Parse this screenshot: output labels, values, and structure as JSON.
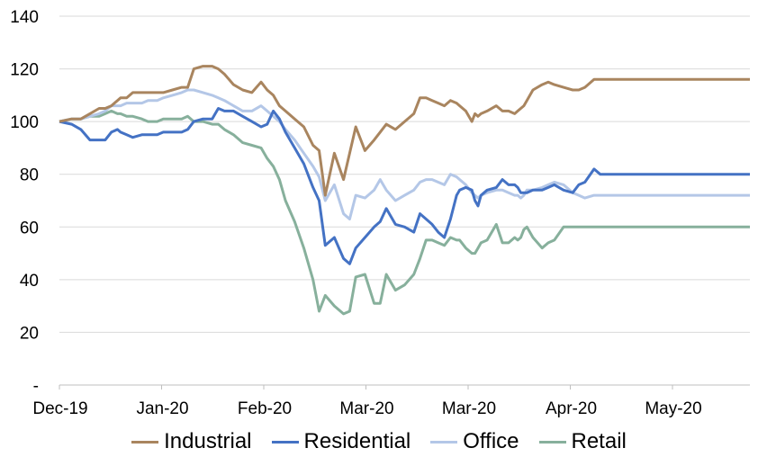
{
  "chart_data": {
    "type": "line",
    "title": "",
    "xlabel": "",
    "ylabel": "",
    "ylim": [
      0,
      140
    ],
    "y_ticks": [
      0,
      20,
      40,
      60,
      80,
      100,
      120,
      140
    ],
    "y_tick_labels": [
      "-",
      "20",
      "40",
      "60",
      "80",
      "100",
      "120",
      "140"
    ],
    "x_tick_labels": [
      "Dec-19",
      "Jan-20",
      "Feb-20",
      "Mar-20",
      "Mar-20",
      "Apr-20",
      "May-20"
    ],
    "grid": "horizontal",
    "legend_position": "bottom",
    "x": [
      0,
      4,
      7,
      10,
      13,
      15,
      17,
      19,
      20,
      22,
      24,
      27,
      29,
      32,
      34,
      37,
      40,
      42,
      44,
      47,
      50,
      52,
      54,
      57,
      60,
      63,
      66,
      68,
      70,
      72,
      74,
      77,
      80,
      83,
      85,
      87,
      90,
      93,
      95,
      97,
      100,
      103,
      105,
      107,
      110,
      113,
      116,
      118,
      120,
      122,
      124,
      126,
      128,
      130,
      131,
      133,
      135,
      136,
      137,
      138,
      140,
      143,
      145,
      147,
      149,
      150,
      151,
      152,
      153,
      155,
      158,
      160,
      162,
      165,
      168,
      170,
      172,
      175,
      177,
      180,
      182,
      185,
      188,
      190,
      193,
      195,
      197,
      200,
      203,
      205,
      207,
      210,
      212,
      215,
      217,
      220,
      222,
      224,
      226
    ],
    "series": [
      {
        "name": "Industrial",
        "color": "#a9855f",
        "values": [
          100,
          101,
          101,
          103,
          105,
          105,
          106,
          108,
          109,
          109,
          111,
          111,
          111,
          111,
          111,
          112,
          113,
          113,
          120,
          121,
          121,
          120,
          118,
          114,
          112,
          111,
          115,
          112,
          110,
          106,
          104,
          101,
          98,
          91,
          89,
          72,
          88,
          78,
          88,
          98,
          89,
          93,
          96,
          99,
          97,
          100,
          103,
          109,
          109,
          108,
          107,
          106,
          108,
          107,
          106,
          104,
          100,
          103,
          102,
          103,
          104,
          106,
          104,
          104,
          103,
          104,
          105,
          106,
          108,
          112,
          114,
          115,
          114,
          113,
          112,
          112,
          113,
          116,
          116,
          116,
          116,
          116,
          116,
          116,
          116,
          116,
          116,
          116,
          116,
          116,
          116,
          116,
          116,
          116,
          116,
          116,
          116,
          116,
          116
        ]
      },
      {
        "name": "Residential",
        "color": "#4472c4",
        "values": [
          100,
          99,
          97,
          93,
          93,
          93,
          96,
          97,
          96,
          95,
          94,
          95,
          95,
          95,
          96,
          96,
          96,
          97,
          100,
          101,
          101,
          105,
          104,
          104,
          102,
          100,
          98,
          99,
          104,
          101,
          96,
          90,
          84,
          75,
          70,
          53,
          56,
          48,
          46,
          52,
          56,
          60,
          62,
          67,
          61,
          60,
          58,
          65,
          63,
          61,
          58,
          56,
          63,
          72,
          74,
          75,
          74,
          70,
          68,
          72,
          74,
          75,
          78,
          76,
          76,
          75,
          73,
          73,
          73,
          74,
          74,
          75,
          76,
          74,
          73,
          76,
          77,
          82,
          80,
          80,
          80,
          80,
          80,
          80,
          80,
          80,
          80,
          80,
          80,
          80,
          80,
          80,
          80,
          80,
          80,
          80,
          80,
          80,
          80
        ]
      },
      {
        "name": "Office",
        "color": "#b4c7e7",
        "values": [
          100,
          101,
          101,
          102,
          103,
          104,
          106,
          106,
          106,
          107,
          107,
          107,
          108,
          108,
          109,
          110,
          111,
          112,
          112,
          111,
          110,
          109,
          108,
          106,
          104,
          104,
          106,
          104,
          102,
          100,
          97,
          93,
          88,
          83,
          79,
          70,
          76,
          65,
          63,
          72,
          71,
          74,
          78,
          74,
          70,
          72,
          74,
          77,
          78,
          78,
          77,
          76,
          80,
          79,
          78,
          76,
          73,
          72,
          71,
          72,
          73,
          74,
          74,
          73,
          72,
          72,
          71,
          72,
          74,
          74,
          75,
          76,
          77,
          76,
          73,
          72,
          71,
          72,
          72,
          72,
          72,
          72,
          72,
          72,
          72,
          72,
          72,
          72,
          72,
          72,
          72,
          72,
          72,
          72,
          72,
          72,
          72,
          72,
          72
        ]
      },
      {
        "name": "Retail",
        "color": "#87b09c",
        "values": [
          100,
          101,
          101,
          102,
          102,
          103,
          104,
          103,
          103,
          102,
          102,
          101,
          100,
          100,
          101,
          101,
          101,
          102,
          100,
          100,
          99,
          99,
          97,
          95,
          92,
          91,
          90,
          86,
          83,
          78,
          70,
          62,
          52,
          40,
          28,
          34,
          30,
          27,
          28,
          41,
          42,
          31,
          31,
          42,
          36,
          38,
          42,
          48,
          55,
          55,
          54,
          53,
          56,
          55,
          55,
          52,
          50,
          50,
          52,
          54,
          55,
          61,
          54,
          54,
          56,
          55,
          56,
          59,
          60,
          56,
          52,
          54,
          55,
          60,
          60,
          60,
          60,
          60,
          60,
          60,
          60,
          60,
          60,
          60,
          60,
          60,
          60,
          60,
          60,
          60,
          60,
          60,
          60,
          60,
          60,
          60,
          60,
          60,
          60
        ]
      }
    ]
  }
}
